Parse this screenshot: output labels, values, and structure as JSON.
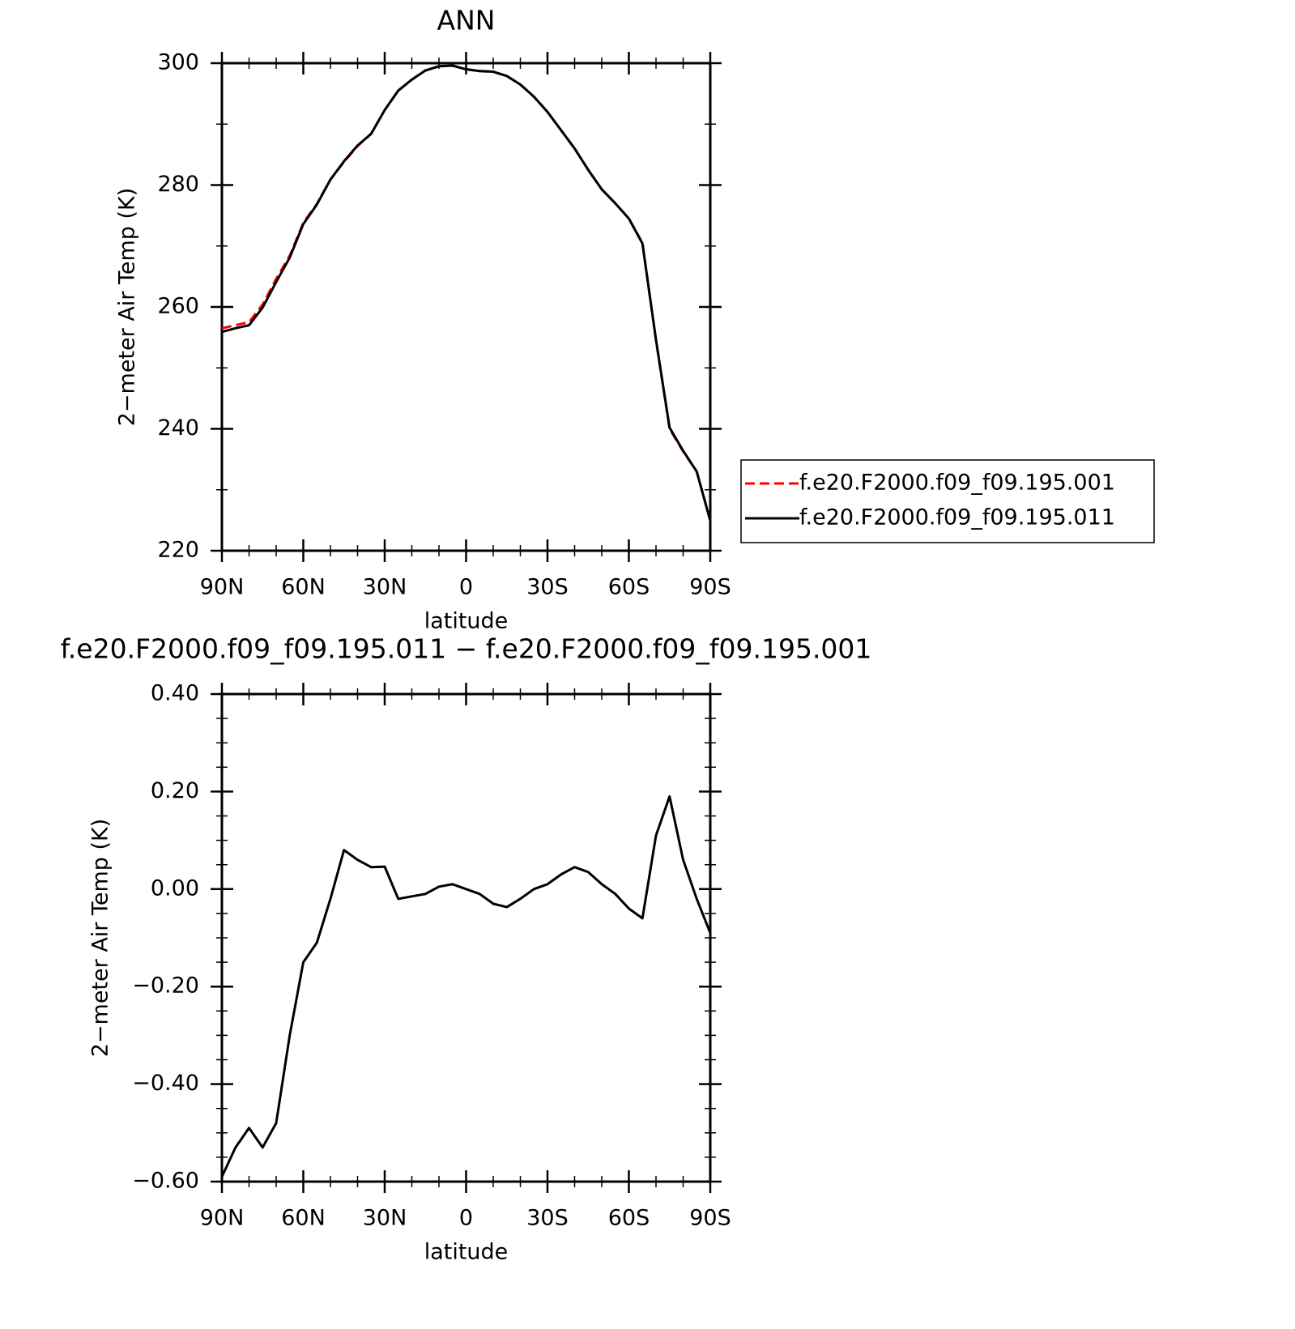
{
  "chart_data": [
    {
      "type": "line",
      "title": "ANN",
      "xlabel": "latitude",
      "ylabel": "2−meter Air Temp (K)",
      "x": [
        90,
        85,
        80,
        75,
        70,
        65,
        60,
        55,
        50,
        45,
        40,
        35,
        30,
        25,
        20,
        15,
        10,
        5,
        0,
        -5,
        -10,
        -15,
        -20,
        -25,
        -30,
        -35,
        -40,
        -45,
        -50,
        -55,
        -60,
        -65,
        -70,
        -75,
        -80,
        -85,
        -90
      ],
      "xlim": [
        90,
        -90
      ],
      "xticks": [
        {
          "value": 90,
          "label": "90N"
        },
        {
          "value": 60,
          "label": "60N"
        },
        {
          "value": 30,
          "label": "30N"
        },
        0,
        {
          "value": -30,
          "label": "30S"
        },
        {
          "value": -60,
          "label": "60S"
        },
        {
          "value": -90,
          "label": "90S"
        }
      ],
      "ylim": [
        220,
        300
      ],
      "yticks": [
        220,
        240,
        260,
        280,
        300
      ],
      "legend": "right",
      "series": [
        {
          "name": "f.e20.F2000.f09_f09.195.001",
          "color": "#ff0000",
          "dash": true,
          "values": [
            256.5,
            257.0,
            257.5,
            260.4,
            264.6,
            268.4,
            273.8,
            276.9,
            280.9,
            283.8,
            286.4,
            288.4,
            292.3,
            295.5,
            297.3,
            298.8,
            299.5,
            299.6,
            299.0,
            298.7,
            298.6,
            297.9,
            296.5,
            294.5,
            292.0,
            289.0,
            286.0,
            282.5,
            279.3,
            277.0,
            274.5,
            270.5,
            254.5,
            240.0,
            236.3,
            233.0,
            225.0
          ]
        },
        {
          "name": "f.e20.F2000.f09_f09.195.011",
          "color": "#000000",
          "dash": false,
          "values": [
            255.9,
            256.5,
            257.0,
            259.9,
            264.1,
            268.1,
            273.6,
            276.8,
            280.9,
            283.9,
            286.5,
            288.4,
            292.3,
            295.5,
            297.3,
            298.8,
            299.5,
            299.6,
            299.0,
            298.7,
            298.6,
            297.9,
            296.5,
            294.5,
            292.0,
            289.0,
            286.0,
            282.5,
            279.3,
            277.0,
            274.5,
            270.4,
            254.6,
            240.2,
            236.4,
            233.0,
            224.9
          ]
        }
      ]
    },
    {
      "type": "line",
      "title": "f.e20.F2000.f09_f09.195.011 − f.e20.F2000.f09_f09.195.001",
      "xlabel": "latitude",
      "ylabel": "2−meter Air Temp (K)",
      "x": [
        90,
        85,
        80,
        75,
        70,
        65,
        60,
        55,
        50,
        45,
        40,
        35,
        30,
        25,
        20,
        15,
        10,
        5,
        0,
        -5,
        -10,
        -15,
        -20,
        -25,
        -30,
        -35,
        -40,
        -45,
        -50,
        -55,
        -60,
        -65,
        -70,
        -75,
        -80,
        -85,
        -90
      ],
      "xlim": [
        90,
        -90
      ],
      "xticks": [
        {
          "value": 90,
          "label": "90N"
        },
        {
          "value": 60,
          "label": "60N"
        },
        {
          "value": 30,
          "label": "30N"
        },
        0,
        {
          "value": -30,
          "label": "30S"
        },
        {
          "value": -60,
          "label": "60S"
        },
        {
          "value": -90,
          "label": "90S"
        }
      ],
      "ylim": [
        -0.6,
        0.4
      ],
      "yticks": [
        {
          "value": -0.6,
          "label": "−0.60"
        },
        {
          "value": -0.4,
          "label": "−0.40"
        },
        {
          "value": -0.2,
          "label": "−0.20"
        },
        {
          "value": 0,
          "label": "0.00"
        },
        {
          "value": 0.2,
          "label": "0.20"
        },
        {
          "value": 0.4,
          "label": "0.40"
        }
      ],
      "series": [
        {
          "color": "#000000",
          "dash": false,
          "values": [
            -0.59,
            -0.53,
            -0.49,
            -0.53,
            -0.48,
            -0.3,
            -0.15,
            -0.11,
            -0.02,
            0.08,
            0.06,
            0.045,
            0.046,
            -0.02,
            -0.015,
            -0.01,
            0.005,
            0.01,
            0.0,
            -0.01,
            -0.03,
            -0.037,
            -0.02,
            0.0,
            0.01,
            0.03,
            0.045,
            0.035,
            0.01,
            -0.01,
            -0.04,
            -0.06,
            0.11,
            0.19,
            0.06,
            -0.02,
            -0.09
          ]
        }
      ]
    }
  ]
}
